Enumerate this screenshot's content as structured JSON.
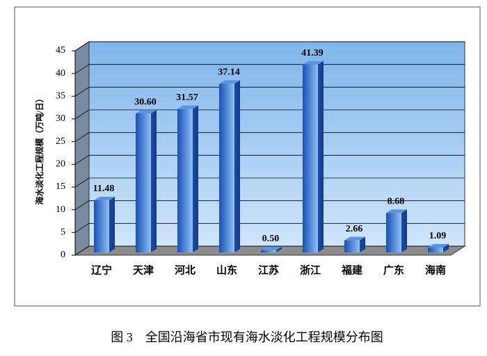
{
  "chart_data": {
    "type": "bar3d",
    "caption": "图 3　全国沿海省市现有海水淡化工程规模分布图",
    "y_label": "海水淡化工程规模（万吨/日）",
    "categories": [
      "辽宁",
      "天津",
      "河北",
      "山东",
      "江苏",
      "浙江",
      "福建",
      "广东",
      "海南"
    ],
    "values": [
      11.48,
      30.6,
      31.57,
      37.14,
      0.5,
      41.39,
      2.66,
      8.68,
      1.09
    ],
    "value_labels": [
      "11.48",
      "30.60",
      "31.57",
      "37.14",
      "0.50",
      "41.39",
      "2.66",
      "8.68",
      "1.09"
    ],
    "color": "#2a62c9",
    "ylim": [
      0,
      45
    ],
    "yticks": [
      0,
      5,
      10,
      15,
      20,
      25,
      30,
      35,
      40,
      45
    ],
    "grid": true
  }
}
